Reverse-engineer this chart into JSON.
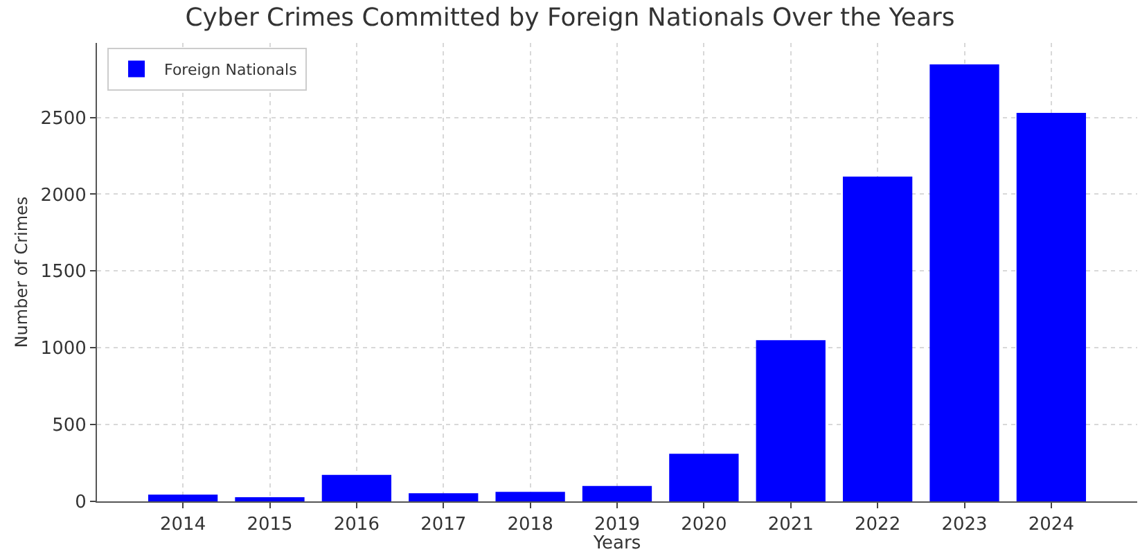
{
  "chart_data": {
    "type": "bar",
    "title": "Cyber Crimes Committed by Foreign Nationals Over the Years",
    "xlabel": "Years",
    "ylabel": "Number of Crimes",
    "categories": [
      "2014",
      "2015",
      "2016",
      "2017",
      "2018",
      "2019",
      "2020",
      "2021",
      "2022",
      "2023",
      "2024"
    ],
    "series": [
      {
        "name": "Foreign Nationals",
        "color": "#0000ff",
        "values": [
          44,
          27,
          172,
          53,
          62,
          100,
          310,
          1050,
          2115,
          2845,
          2530
        ]
      }
    ],
    "ylim": [
      0,
      2985
    ],
    "yticks": [
      0,
      500,
      1000,
      1500,
      2000,
      2500
    ],
    "grid": true,
    "legend": "top left"
  }
}
